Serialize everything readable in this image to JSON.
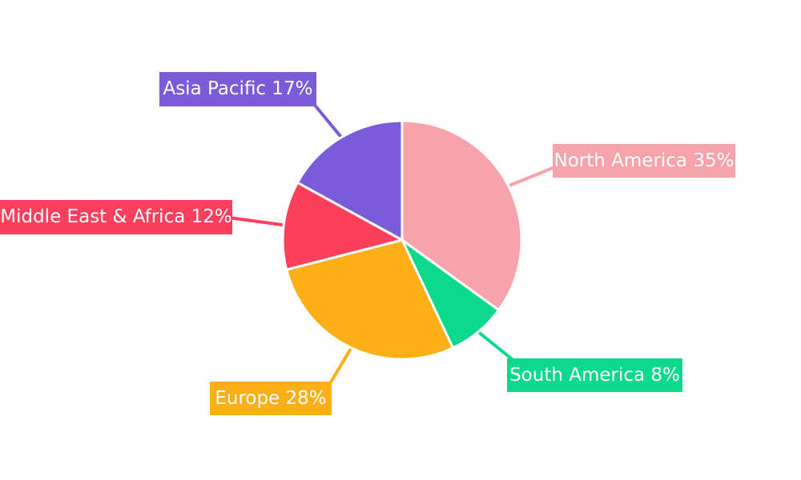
{
  "page": {
    "background_color": "#ffffff",
    "label_text_color": "#ffffff"
  },
  "chart_data": {
    "type": "pie",
    "title": "",
    "direction": "clockwise",
    "start_angle_deg_from_top": 0,
    "legend_position": "callout-labels",
    "slices": [
      {
        "name": "North America",
        "value": 35,
        "unit": "%",
        "color": "#F7A3AB",
        "label": "North America 35%"
      },
      {
        "name": "South America",
        "value": 8,
        "unit": "%",
        "color": "#0DD98D",
        "label": "South America 8%"
      },
      {
        "name": "Europe",
        "value": 28,
        "unit": "%",
        "color": "#FCAF17",
        "label": "Europe 28%"
      },
      {
        "name": "Middle East & Africa",
        "value": 12,
        "unit": "%",
        "color": "#FB3F5C",
        "label": "Middle East & Africa 12%"
      },
      {
        "name": "Asia Pacific",
        "value": 17,
        "unit": "%",
        "color": "#7A5CD8",
        "label": "Asia Pacific 17%"
      }
    ]
  }
}
